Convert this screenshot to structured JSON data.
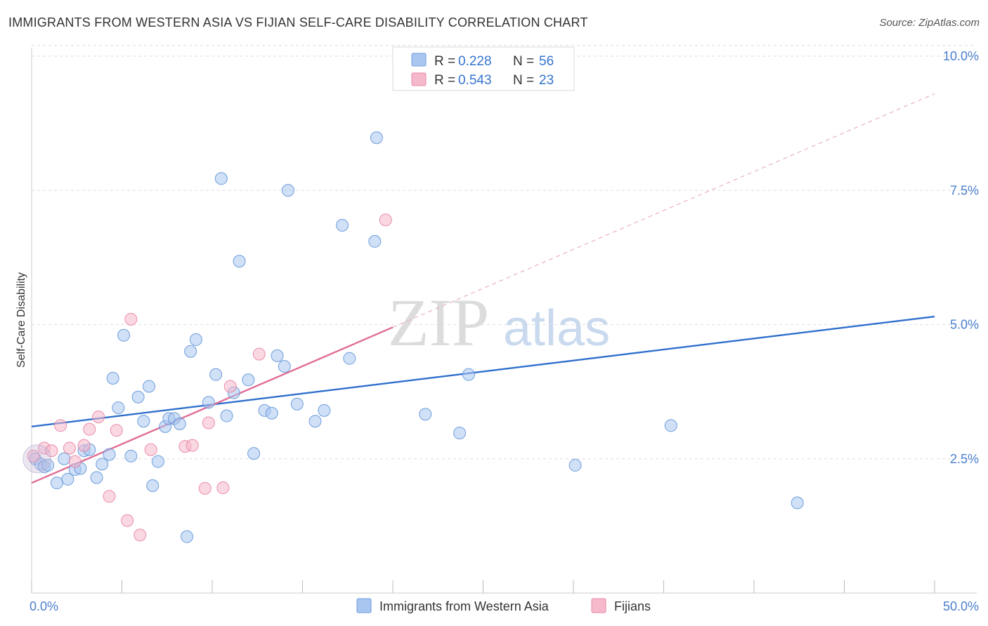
{
  "header": {
    "title": "IMMIGRANTS FROM WESTERN ASIA VS FIJIAN SELF-CARE DISABILITY CORRELATION CHART",
    "source": "Source: ZipAtlas.com"
  },
  "watermark": {
    "zip": "ZIP",
    "atlas": "atlas"
  },
  "legend": {
    "rows": [
      {
        "r_label": "R =",
        "r_value": "0.228",
        "n_label": "N =",
        "n_value": "56",
        "color": "#a8c6f0"
      },
      {
        "r_label": "R =",
        "r_value": "0.543",
        "n_label": "N =",
        "n_value": "23",
        "color": "#f6b8cb"
      }
    ]
  },
  "bottom_legend": [
    {
      "label": "Immigrants from Western Asia",
      "color": "#a8c6f0"
    },
    {
      "label": "Fijians",
      "color": "#f6b8cb"
    }
  ],
  "chart_data": {
    "type": "scatter",
    "title": "IMMIGRANTS FROM WESTERN ASIA VS FIJIAN SELF-CARE DISABILITY CORRELATION CHART",
    "xlabel": "",
    "ylabel": "Self-Care Disability",
    "xlim": [
      0,
      50
    ],
    "ylim": [
      0,
      10.2
    ],
    "x_tick_labels": [
      {
        "value": 0,
        "label": "0.0%"
      },
      {
        "value": 50,
        "label": "50.0%"
      }
    ],
    "y_tick_labels": [
      {
        "value": 2.5,
        "label": "2.5%"
      },
      {
        "value": 5.0,
        "label": "5.0%"
      },
      {
        "value": 7.5,
        "label": "7.5%"
      },
      {
        "value": 10.0,
        "label": "10.0%"
      }
    ],
    "grid": "horizontal dashed",
    "legend_position": "top-center",
    "series": [
      {
        "name": "Immigrants from Western Asia",
        "color": "#5b8fd6",
        "fill": "#a8c6f0",
        "trend": {
          "x": [
            0,
            50
          ],
          "y": [
            3.1,
            5.15
          ],
          "color": "#2e6fcc"
        },
        "points": [
          [
            0.2,
            2.5
          ],
          [
            0.5,
            2.4
          ],
          [
            0.7,
            2.35
          ],
          [
            0.9,
            2.38
          ],
          [
            1.4,
            2.05
          ],
          [
            1.8,
            2.5
          ],
          [
            2.0,
            2.12
          ],
          [
            2.4,
            2.3
          ],
          [
            2.7,
            2.32
          ],
          [
            2.9,
            2.65
          ],
          [
            3.2,
            2.67
          ],
          [
            3.6,
            2.15
          ],
          [
            3.9,
            2.4
          ],
          [
            4.3,
            2.58
          ],
          [
            4.5,
            4.0
          ],
          [
            4.8,
            3.45
          ],
          [
            5.1,
            4.8
          ],
          [
            5.5,
            2.55
          ],
          [
            5.9,
            3.65
          ],
          [
            6.2,
            3.2
          ],
          [
            6.5,
            3.85
          ],
          [
            6.7,
            2.0
          ],
          [
            7.0,
            2.45
          ],
          [
            7.4,
            3.1
          ],
          [
            7.6,
            3.25
          ],
          [
            7.9,
            3.25
          ],
          [
            8.2,
            3.15
          ],
          [
            8.6,
            1.05
          ],
          [
            8.8,
            4.5
          ],
          [
            9.1,
            4.72
          ],
          [
            9.8,
            3.55
          ],
          [
            10.2,
            4.07
          ],
          [
            10.5,
            7.72
          ],
          [
            10.8,
            3.3
          ],
          [
            11.2,
            3.73
          ],
          [
            11.5,
            6.18
          ],
          [
            12.0,
            3.97
          ],
          [
            12.3,
            2.6
          ],
          [
            12.9,
            3.4
          ],
          [
            13.3,
            3.35
          ],
          [
            13.6,
            4.42
          ],
          [
            14.0,
            4.22
          ],
          [
            14.2,
            7.5
          ],
          [
            14.7,
            3.52
          ],
          [
            15.7,
            3.2
          ],
          [
            16.2,
            3.4
          ],
          [
            17.2,
            6.85
          ],
          [
            17.6,
            4.37
          ],
          [
            19.0,
            6.55
          ],
          [
            19.1,
            8.48
          ],
          [
            21.8,
            3.33
          ],
          [
            23.7,
            2.98
          ],
          [
            24.2,
            4.07
          ],
          [
            30.1,
            2.38
          ],
          [
            35.4,
            3.12
          ],
          [
            42.4,
            1.68
          ]
        ]
      },
      {
        "name": "Fijians",
        "color": "#e67a9f",
        "fill": "#f6b8cb",
        "trend": {
          "x": [
            0,
            20
          ],
          "y": [
            2.05,
            4.95
          ],
          "color": "#e06d96",
          "extended_dashed_to": {
            "x": 50,
            "y": 9.3
          }
        },
        "points": [
          [
            0.1,
            2.55
          ],
          [
            0.7,
            2.7
          ],
          [
            1.1,
            2.65
          ],
          [
            1.6,
            3.12
          ],
          [
            2.1,
            2.7
          ],
          [
            2.4,
            2.45
          ],
          [
            2.9,
            2.75
          ],
          [
            3.2,
            3.05
          ],
          [
            3.7,
            3.28
          ],
          [
            4.3,
            1.8
          ],
          [
            4.7,
            3.03
          ],
          [
            5.3,
            1.35
          ],
          [
            5.5,
            5.1
          ],
          [
            6.0,
            1.08
          ],
          [
            6.6,
            2.67
          ],
          [
            8.5,
            2.73
          ],
          [
            8.9,
            2.75
          ],
          [
            9.6,
            1.95
          ],
          [
            9.8,
            3.17
          ],
          [
            10.6,
            1.96
          ],
          [
            11.0,
            3.85
          ],
          [
            12.6,
            4.45
          ],
          [
            19.6,
            6.95
          ]
        ]
      }
    ]
  }
}
